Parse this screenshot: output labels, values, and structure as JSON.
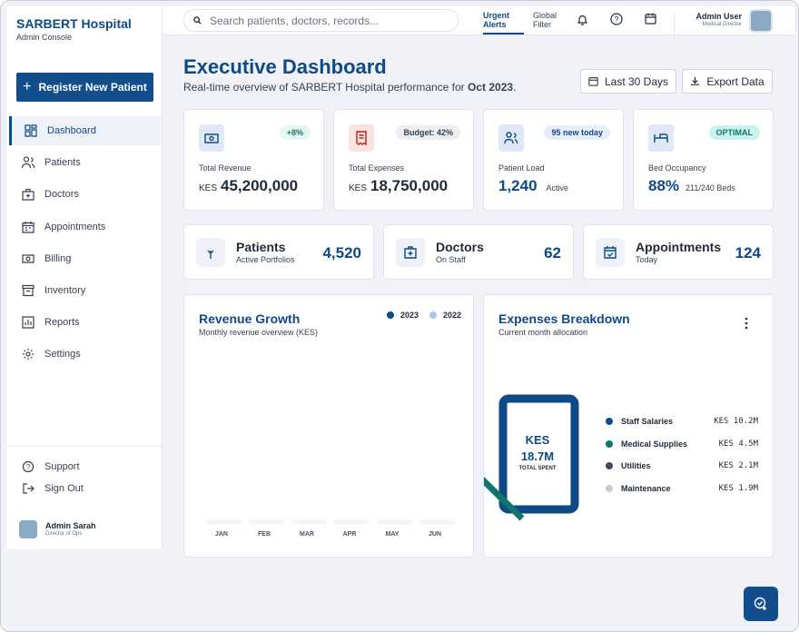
{
  "sidebar": {
    "brand": "SARBERT Hospital",
    "subtitle": "Admin Console",
    "cta": "Register New Patient",
    "nav": [
      "Dashboard",
      "Patients",
      "Doctors",
      "Appointments",
      "Billing",
      "Inventory",
      "Reports",
      "Settings"
    ],
    "footer_links": [
      "Support",
      "Sign Out"
    ],
    "user": {
      "name": "Admin Sarah",
      "role": "Director of Ops"
    }
  },
  "topbar": {
    "search_placeholder": "Search patients, doctors, records...",
    "tabs": [
      "Urgent Alerts",
      "Global Filter"
    ],
    "user": {
      "name": "Admin User",
      "role": "Medical Director"
    }
  },
  "header": {
    "title": "Executive Dashboard",
    "subtitle": "Real-time overview of SARBERT Hospital performance for",
    "period": "Oct 2023",
    "subtitle_end": ".",
    "actions": [
      "Last 30 Days",
      "Export Data"
    ]
  },
  "kpis": [
    {
      "label": "Total Revenue",
      "badge": "+8%",
      "unit": "KES",
      "value": "45,200,000"
    },
    {
      "label": "Total Expenses",
      "badge": "Budget: 42%",
      "unit": "KES",
      "value": "18,750,000"
    },
    {
      "label": "Patient Load",
      "badge": "95 new today",
      "value": "1,240",
      "note": "Active"
    },
    {
      "label": "Bed Occupancy",
      "badge": "OPTIMAL",
      "value": "88%",
      "note": "211/240 Beds"
    }
  ],
  "stats": [
    {
      "title": "Patients",
      "subtitle": "Active Portfolios",
      "value": "4,520"
    },
    {
      "title": "Doctors",
      "subtitle": "On Staff",
      "value": "62"
    },
    {
      "title": "Appointments",
      "subtitle": "Today",
      "value": "124"
    }
  ],
  "revenue_chart": {
    "title": "Revenue Growth",
    "subtitle": "Monthly revenue overview (KES)",
    "legend": [
      "2023",
      "2022"
    ],
    "months": [
      "JAN",
      "FEB",
      "MAR",
      "APR",
      "MAY",
      "JUN"
    ]
  },
  "expenses": {
    "title": "Expenses Breakdown",
    "subtitle": "Current month allocation",
    "center": {
      "unit": "KES",
      "value": "18.7M",
      "label": "TOTAL SPENT"
    },
    "items": [
      {
        "name": "Staff Salaries",
        "value": "KES 10.2M"
      },
      {
        "name": "Medical Supplies",
        "value": "KES 4.5M"
      },
      {
        "name": "Utilities",
        "value": "KES 2.1M"
      },
      {
        "name": "Maintenance",
        "value": "KES 1.9M"
      }
    ]
  }
}
